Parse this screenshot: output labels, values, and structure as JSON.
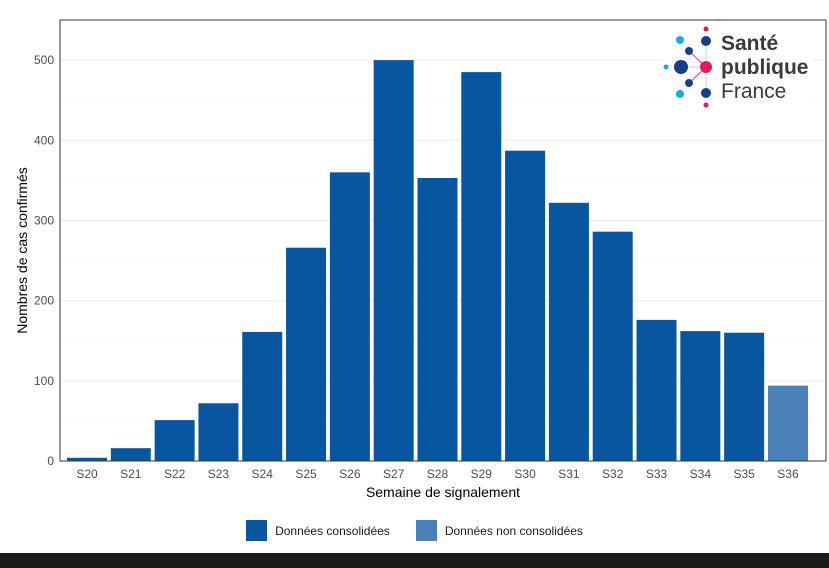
{
  "chart_data": {
    "type": "bar",
    "title": "",
    "xlabel": "Semaine de signalement",
    "ylabel": "Nombres de cas confirmés",
    "ylim": [
      0,
      550
    ],
    "yticks": [
      0,
      100,
      200,
      300,
      400,
      500
    ],
    "grid": true,
    "categories": [
      "S20",
      "S21",
      "S22",
      "S23",
      "S24",
      "S25",
      "S26",
      "S27",
      "S28",
      "S29",
      "S30",
      "S31",
      "S32",
      "S33",
      "S34",
      "S35",
      "S36"
    ],
    "values": [
      4,
      16,
      51,
      72,
      161,
      266,
      360,
      500,
      353,
      485,
      387,
      322,
      286,
      176,
      162,
      160,
      94
    ],
    "bar_status": [
      "consolidated",
      "consolidated",
      "consolidated",
      "consolidated",
      "consolidated",
      "consolidated",
      "consolidated",
      "consolidated",
      "consolidated",
      "consolidated",
      "consolidated",
      "consolidated",
      "consolidated",
      "consolidated",
      "consolidated",
      "consolidated",
      "non-consolidated"
    ],
    "legend_position": "bottom",
    "legend": [
      {
        "label": "Données consolidées",
        "color": "#07569f"
      },
      {
        "label": "Données non consolidées",
        "color": "#4a80b8"
      }
    ]
  },
  "logo": {
    "line1": "Santé",
    "line2": "publique",
    "line3": "France"
  }
}
